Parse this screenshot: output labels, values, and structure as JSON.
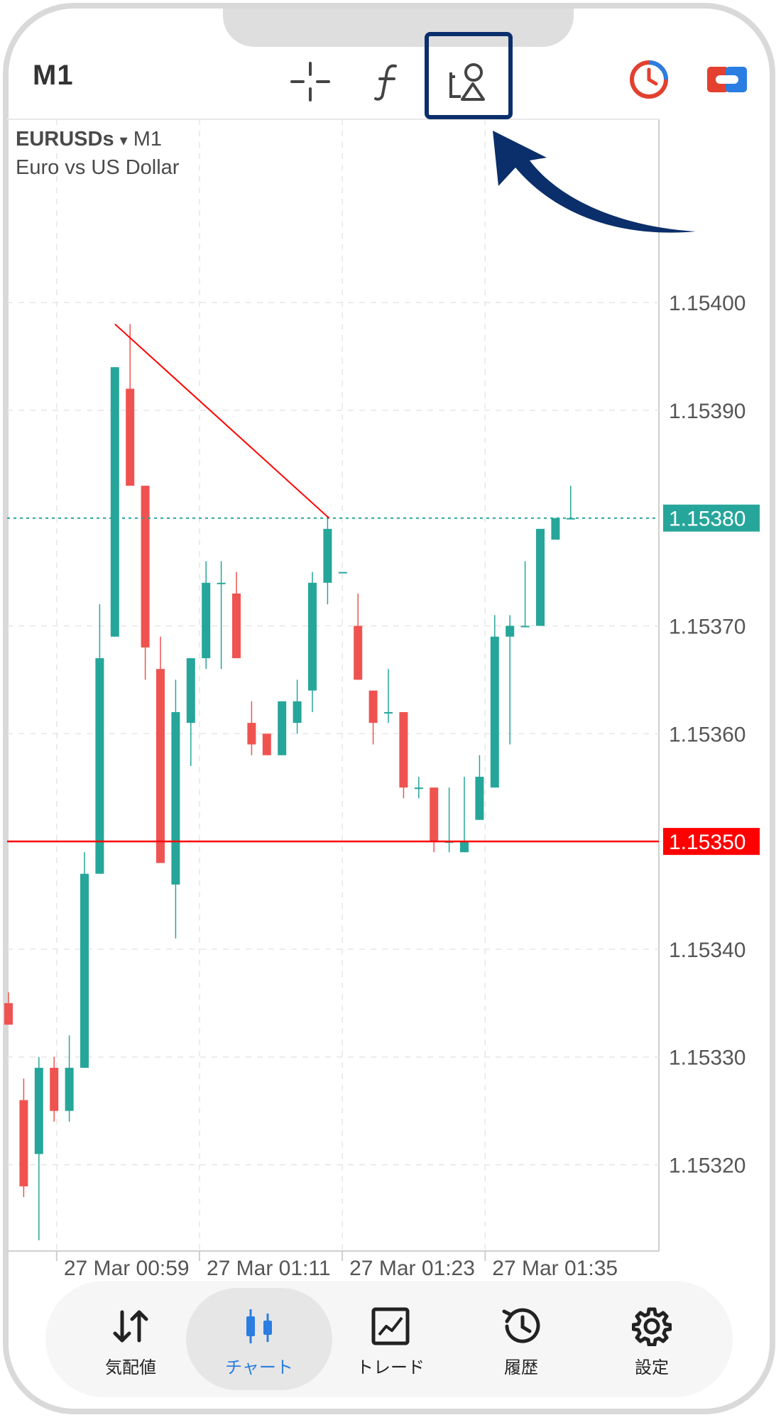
{
  "toolbar": {
    "timeframe": "M1",
    "tools": [
      {
        "icon": "crosshair-icon"
      },
      {
        "icon": "indicator-f-icon"
      },
      {
        "icon": "objects-shapes-icon",
        "highlighted": true
      }
    ],
    "status_icons": [
      {
        "icon": "connection-clock-icon",
        "color": "#e3402f"
      },
      {
        "icon": "one-click-trading-icon",
        "color": "#e3402f"
      }
    ]
  },
  "chart": {
    "symbol": "EURUSDs",
    "period_separator": "▾",
    "period": "M1",
    "description": "Euro vs US Dollar",
    "current_price_label": "1.15380",
    "line_price_label": "1.15350",
    "bull_color": "#26a69a",
    "bear_color": "#ef5350",
    "line_color": "#ff0000"
  },
  "chart_data": {
    "type": "candlestick",
    "y_ticks": [
      "1.15400",
      "1.15390",
      "1.15370",
      "1.15360",
      "1.15340",
      "1.15330",
      "1.15320"
    ],
    "x_ticks": [
      "27 Mar 00:59",
      "27 Mar 01:11",
      "27 Mar 01:23",
      "27 Mar 01:35"
    ],
    "ylim": [
      1.15312,
      1.15417
    ],
    "horizontal_line": 1.1535,
    "current_price": 1.1538,
    "trendline": {
      "from": [
        7,
        1.15398
      ],
      "to": [
        21,
        1.1538
      ]
    },
    "candles": [
      {
        "o": 1.15335,
        "h": 1.15336,
        "l": 1.15333,
        "c": 1.15333
      },
      {
        "o": 1.15326,
        "h": 1.15328,
        "l": 1.15317,
        "c": 1.15318
      },
      {
        "o": 1.15321,
        "h": 1.1533,
        "l": 1.15313,
        "c": 1.15329
      },
      {
        "o": 1.15329,
        "h": 1.1533,
        "l": 1.15324,
        "c": 1.15325
      },
      {
        "o": 1.15325,
        "h": 1.15332,
        "l": 1.15324,
        "c": 1.15329
      },
      {
        "o": 1.15329,
        "h": 1.15349,
        "l": 1.15329,
        "c": 1.15347
      },
      {
        "o": 1.15347,
        "h": 1.15372,
        "l": 1.15347,
        "c": 1.15367
      },
      {
        "o": 1.15369,
        "h": 1.15394,
        "l": 1.15369,
        "c": 1.15394
      },
      {
        "o": 1.15392,
        "h": 1.15398,
        "l": 1.15383,
        "c": 1.15383
      },
      {
        "o": 1.15383,
        "h": 1.15383,
        "l": 1.15365,
        "c": 1.15368
      },
      {
        "o": 1.15366,
        "h": 1.15369,
        "l": 1.15348,
        "c": 1.15348
      },
      {
        "o": 1.15346,
        "h": 1.15365,
        "l": 1.15341,
        "c": 1.15362
      },
      {
        "o": 1.15361,
        "h": 1.15367,
        "l": 1.15357,
        "c": 1.15367
      },
      {
        "o": 1.15367,
        "h": 1.15376,
        "l": 1.15366,
        "c": 1.15374
      },
      {
        "o": 1.15374,
        "h": 1.15376,
        "l": 1.15366,
        "c": 1.15374
      },
      {
        "o": 1.15373,
        "h": 1.15375,
        "l": 1.15367,
        "c": 1.15367
      },
      {
        "o": 1.15361,
        "h": 1.15363,
        "l": 1.15358,
        "c": 1.15359
      },
      {
        "o": 1.1536,
        "h": 1.1536,
        "l": 1.15358,
        "c": 1.15358
      },
      {
        "o": 1.15358,
        "h": 1.15363,
        "l": 1.15358,
        "c": 1.15363
      },
      {
        "o": 1.15361,
        "h": 1.15365,
        "l": 1.1536,
        "c": 1.15363
      },
      {
        "o": 1.15364,
        "h": 1.15375,
        "l": 1.15362,
        "c": 1.15374
      },
      {
        "o": 1.15374,
        "h": 1.1538,
        "l": 1.15372,
        "c": 1.15379
      },
      {
        "o": 1.15375,
        "h": 1.15375,
        "l": 1.15375,
        "c": 1.15375
      },
      {
        "o": 1.1537,
        "h": 1.15373,
        "l": 1.15365,
        "c": 1.15365
      },
      {
        "o": 1.15364,
        "h": 1.15364,
        "l": 1.15359,
        "c": 1.15361
      },
      {
        "o": 1.15362,
        "h": 1.15366,
        "l": 1.15361,
        "c": 1.15362
      },
      {
        "o": 1.15362,
        "h": 1.15362,
        "l": 1.15354,
        "c": 1.15355
      },
      {
        "o": 1.15355,
        "h": 1.15356,
        "l": 1.15354,
        "c": 1.15355
      },
      {
        "o": 1.15355,
        "h": 1.15355,
        "l": 1.15349,
        "c": 1.1535
      },
      {
        "o": 1.1535,
        "h": 1.15355,
        "l": 1.15349,
        "c": 1.1535
      },
      {
        "o": 1.15349,
        "h": 1.15356,
        "l": 1.15349,
        "c": 1.1535
      },
      {
        "o": 1.15352,
        "h": 1.15358,
        "l": 1.15352,
        "c": 1.15356
      },
      {
        "o": 1.15355,
        "h": 1.15371,
        "l": 1.15355,
        "c": 1.15369
      },
      {
        "o": 1.15369,
        "h": 1.15371,
        "l": 1.15359,
        "c": 1.1537
      },
      {
        "o": 1.1537,
        "h": 1.15376,
        "l": 1.1537,
        "c": 1.1537
      },
      {
        "o": 1.1537,
        "h": 1.15379,
        "l": 1.1537,
        "c": 1.15379
      },
      {
        "o": 1.15378,
        "h": 1.1538,
        "l": 1.15378,
        "c": 1.1538
      },
      {
        "o": 1.1538,
        "h": 1.15383,
        "l": 1.1538,
        "c": 1.1538
      }
    ]
  },
  "nav": {
    "items": [
      {
        "label": "気配値",
        "icon": "quotes-arrows-icon"
      },
      {
        "label": "チャート",
        "icon": "candlestick-icon",
        "active": true
      },
      {
        "label": "トレード",
        "icon": "trade-chart-icon"
      },
      {
        "label": "履歴",
        "icon": "history-clock-icon"
      },
      {
        "label": "設定",
        "icon": "gear-icon"
      }
    ]
  }
}
